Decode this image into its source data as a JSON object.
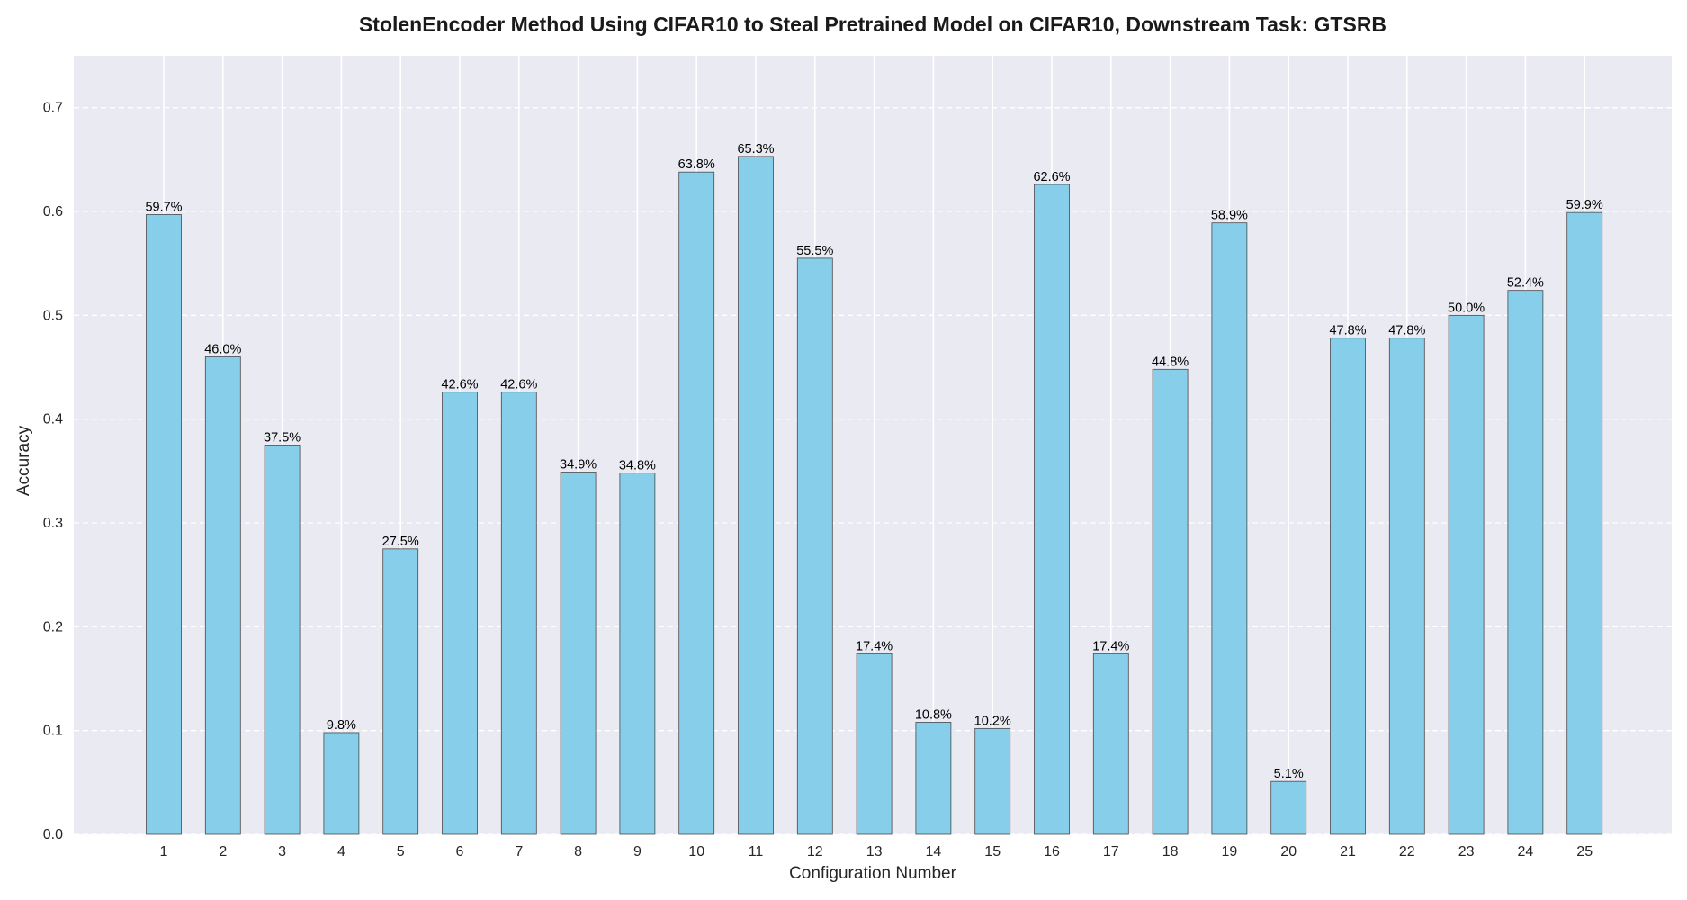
{
  "chart_data": {
    "type": "bar",
    "title": "StolenEncoder Method Using CIFAR10 to Steal Pretrained Model on CIFAR10, Downstream Task: GTSRB",
    "xlabel": "Configuration Number",
    "ylabel": "Accuracy",
    "categories": [
      "1",
      "2",
      "3",
      "4",
      "5",
      "6",
      "7",
      "8",
      "9",
      "10",
      "11",
      "12",
      "13",
      "14",
      "15",
      "16",
      "17",
      "18",
      "19",
      "20",
      "21",
      "22",
      "23",
      "24",
      "25"
    ],
    "values": [
      0.597,
      0.46,
      0.375,
      0.098,
      0.275,
      0.426,
      0.426,
      0.349,
      0.348,
      0.638,
      0.653,
      0.555,
      0.174,
      0.108,
      0.102,
      0.626,
      0.174,
      0.448,
      0.589,
      0.051,
      0.478,
      0.478,
      0.5,
      0.524,
      0.599
    ],
    "labels": [
      "59.7%",
      "46.0%",
      "37.5%",
      "9.8%",
      "27.5%",
      "42.6%",
      "42.6%",
      "34.9%",
      "34.8%",
      "63.8%",
      "65.3%",
      "55.5%",
      "17.4%",
      "10.8%",
      "10.2%",
      "62.6%",
      "17.4%",
      "44.8%",
      "58.9%",
      "5.1%",
      "47.8%",
      "47.8%",
      "50.0%",
      "52.4%",
      "59.9%"
    ],
    "ylim": [
      0,
      0.75
    ],
    "yticks": [
      0.0,
      0.1,
      0.2,
      0.3,
      0.4,
      0.5,
      0.6,
      0.7
    ],
    "ytick_labels": [
      "0.0",
      "0.1",
      "0.2",
      "0.3",
      "0.4",
      "0.5",
      "0.6",
      "0.7"
    ],
    "grid": true,
    "colors": {
      "bar": "#87CEEB",
      "bar_edge": "#4a4a4a",
      "plot_bg": "#EAEAF2",
      "grid": "#ffffff"
    }
  }
}
